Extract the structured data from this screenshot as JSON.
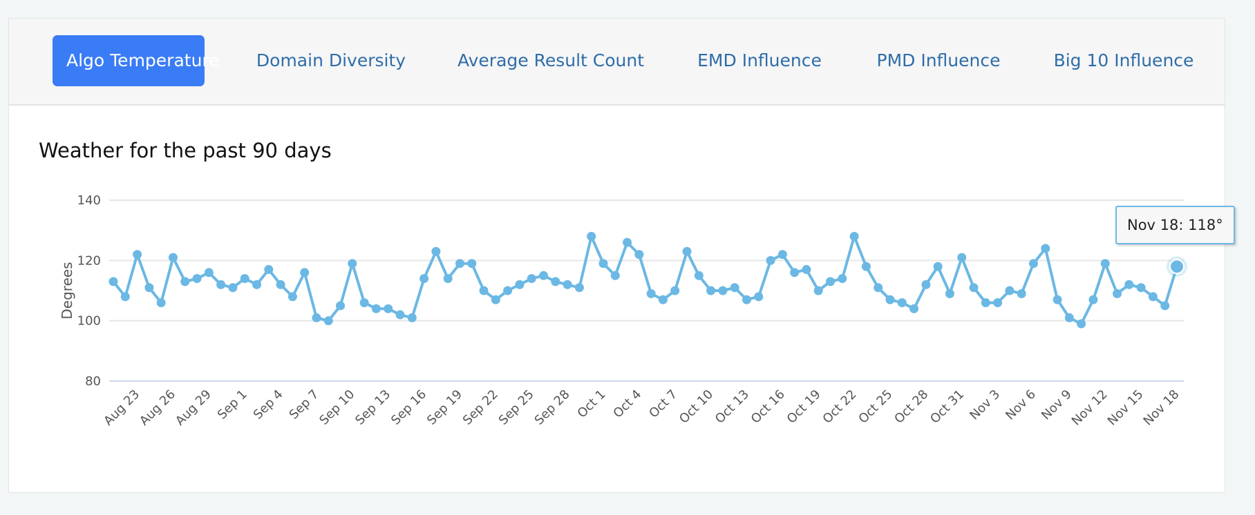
{
  "tabs": [
    {
      "label": "Algo Temperature",
      "active": true
    },
    {
      "label": "Domain Diversity"
    },
    {
      "label": "Average Result Count"
    },
    {
      "label": "EMD Influence"
    },
    {
      "label": "PMD Influence"
    },
    {
      "label": "Big 10 Influence"
    }
  ],
  "colors": {
    "accent": "#3a7cf6",
    "line": "#6bb8e4",
    "tab_text": "#2e6da9"
  },
  "tooltip": "Nov 18: 118°",
  "chart_data": {
    "type": "line",
    "title": "Weather for the past 90 days",
    "xlabel": "",
    "ylabel": "Degrees",
    "ylim": [
      80,
      140
    ],
    "yticks": [
      "80",
      "100",
      "120",
      "140"
    ],
    "grid": true,
    "start_date": "Aug 21",
    "xtick_labels": [
      "Aug 23",
      "Aug 26",
      "Aug 29",
      "Sep 1",
      "Sep 4",
      "Sep 7",
      "Sep 10",
      "Sep 13",
      "Sep 16",
      "Sep 19",
      "Sep 22",
      "Sep 25",
      "Sep 28",
      "Oct 1",
      "Oct 4",
      "Oct 7",
      "Oct 10",
      "Oct 13",
      "Oct 16",
      "Oct 19",
      "Oct 22",
      "Oct 25",
      "Oct 28",
      "Oct 31",
      "Nov 3",
      "Nov 6",
      "Nov 9",
      "Nov 12",
      "Nov 15",
      "Nov 18"
    ],
    "series": [
      {
        "name": "Degrees",
        "values": [
          113,
          108,
          122,
          111,
          106,
          121,
          113,
          114,
          116,
          112,
          111,
          114,
          112,
          117,
          112,
          108,
          116,
          101,
          100,
          105,
          119,
          106,
          104,
          104,
          102,
          101,
          114,
          123,
          114,
          119,
          119,
          110,
          107,
          110,
          112,
          114,
          115,
          113,
          112,
          111,
          128,
          119,
          115,
          126,
          122,
          109,
          107,
          110,
          123,
          115,
          110,
          110,
          111,
          107,
          108,
          120,
          122,
          116,
          117,
          110,
          113,
          114,
          128,
          118,
          111,
          107,
          106,
          104,
          112,
          118,
          109,
          121,
          111,
          106,
          106,
          110,
          109,
          119,
          124,
          107,
          101,
          99,
          107,
          119,
          109,
          112,
          111,
          108,
          105,
          118
        ]
      }
    ]
  }
}
